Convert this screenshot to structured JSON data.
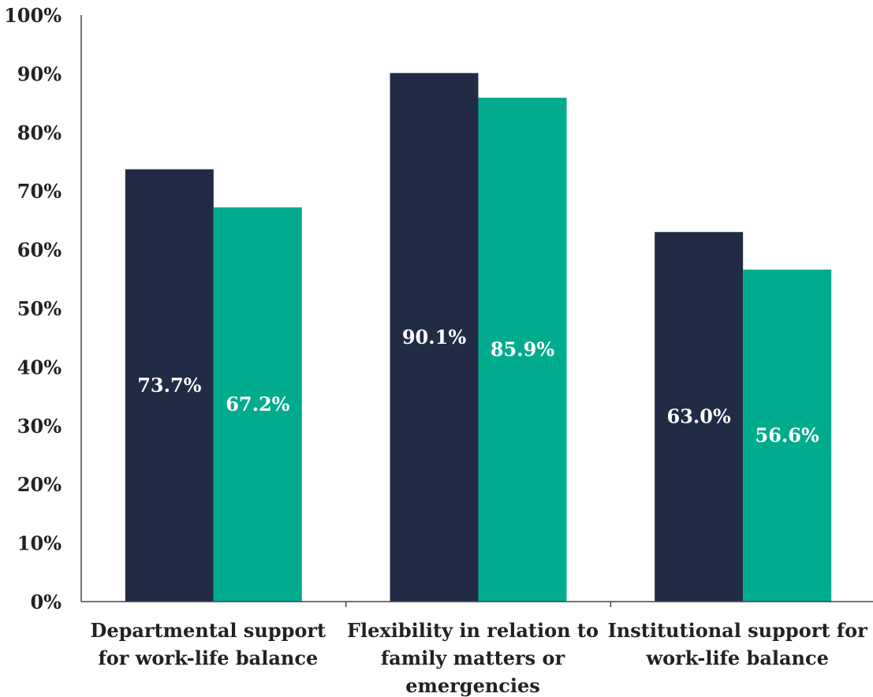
{
  "chart_data": {
    "type": "bar",
    "categories": [
      [
        "Departmental support",
        "for work-life balance"
      ],
      [
        "Flexibility in relation to",
        "family matters or",
        "emergencies"
      ],
      [
        "Institutional support for",
        "work-life balance"
      ]
    ],
    "series": [
      {
        "values": [
          73.7,
          90.1,
          63.0
        ],
        "color": "#212b45"
      },
      {
        "values": [
          67.2,
          85.9,
          56.6
        ],
        "color": "#00ab8e"
      }
    ],
    "data_labels": [
      [
        "73.7%",
        "90.1%",
        "63.0%"
      ],
      [
        "67.2%",
        "85.9%",
        "56.6%"
      ]
    ],
    "yticks": [
      "0%",
      "10%",
      "20%",
      "30%",
      "40%",
      "50%",
      "60%",
      "70%",
      "80%",
      "90%",
      "100%"
    ],
    "ylim": [
      0,
      100
    ],
    "grid": false,
    "legend": "none"
  }
}
